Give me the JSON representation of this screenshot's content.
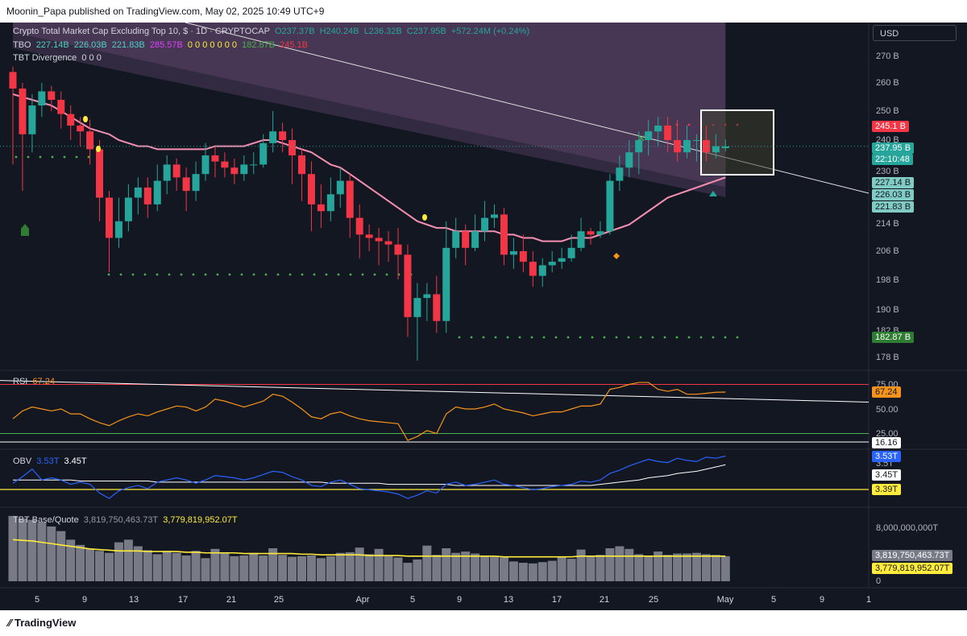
{
  "header": "Moonin_Papa published on TradingView.com, May 02, 2025 10:49 UTC+9",
  "footer": "TradingView",
  "currency": "USD",
  "legends": {
    "main": {
      "title": "Crypto Total Market Cap Excluding Top 10, $ · 1D · CRYPTOCAP",
      "o": "O237.37B",
      "h": "H240.24B",
      "l": "L236.32B",
      "c": "C237.95B",
      "chg": "+572.24M (+0.24%)"
    },
    "tbo": {
      "name": "TBO",
      "v1": "227.14B",
      "v2": "226.03B",
      "v3": "221.83B",
      "v4": "285.57B",
      "zeros": "0 0 0 0 0 0 0",
      "v5": "182.87B",
      "v6": "245.1B"
    },
    "tbtdiv": {
      "name": "TBT Divergence",
      "vals": "0 0 0"
    },
    "rsi": {
      "name": "RSI",
      "value": "67.24"
    },
    "obv": {
      "name": "OBV",
      "v1": "3.53T",
      "v2": "3.45T"
    },
    "tbt": {
      "name": "TBT Base/Quote",
      "v1": "3,819,750,463.73T",
      "v2": "3,779,819,952.07T"
    }
  },
  "price_axis": [
    "270 B",
    "260 B",
    "250 B",
    "240 B",
    "230 B",
    "214 B",
    "206 B",
    "198 B",
    "190 B",
    "182 B",
    "178 B"
  ],
  "price_tags": {
    "red": "245.1 B",
    "close": "237.95 B",
    "timer": "22:10:48",
    "t1": "227.14 B",
    "t2": "226.03 B",
    "t3": "221.83 B",
    "low": "182.87 B"
  },
  "rsi_axis": {
    "a75": "75.00",
    "a50": "50.00",
    "a25": "25.00",
    "tag_rsi": "67.24",
    "tag_low": "16.16"
  },
  "obv_axis": {
    "a35": "3.5T",
    "tag1": "3.53T",
    "tag2": "3.45T",
    "tag3": "3.39T"
  },
  "vol_axis": {
    "a8": "8,000,000,000T",
    "zero": "0",
    "tag1": "3,819,750,463.73T",
    "tag2": "3,779,819,952.07T"
  },
  "x_axis": [
    "5",
    "9",
    "13",
    "17",
    "21",
    "25",
    "Apr",
    "5",
    "9",
    "13",
    "17",
    "21",
    "25",
    "May",
    "5",
    "9",
    "1"
  ],
  "colors": {
    "up": "#26a69a",
    "down": "#f23645",
    "ma": "#f48fb1",
    "rsi": "#f7931a",
    "obv": "#2962ff",
    "signal": "#ffeb3b",
    "dots": "#4caf50",
    "cloud": "#7e5a8e"
  },
  "chart_data": {
    "type": "candlestick",
    "title": "Crypto Total Market Cap Excluding Top 10",
    "unit": "B USD",
    "ylim": [
      175,
      276
    ],
    "candles": [
      [
        264,
        258,
        266,
        232
      ],
      [
        258,
        242,
        260,
        224
      ],
      [
        242,
        252,
        256,
        236
      ],
      [
        252,
        257,
        260,
        248
      ],
      [
        257,
        254,
        259,
        250
      ],
      [
        254,
        249,
        257,
        244
      ],
      [
        249,
        245,
        252,
        240
      ],
      [
        245,
        243,
        248,
        238
      ],
      [
        243,
        237,
        247,
        232
      ],
      [
        237,
        222,
        240,
        215
      ],
      [
        222,
        210,
        224,
        200
      ],
      [
        210,
        215,
        222,
        207
      ],
      [
        215,
        222,
        226,
        212
      ],
      [
        222,
        225,
        228,
        217
      ],
      [
        225,
        220,
        228,
        216
      ],
      [
        220,
        227,
        232,
        218
      ],
      [
        227,
        232,
        235,
        223
      ],
      [
        232,
        228,
        234,
        224
      ],
      [
        228,
        224,
        231,
        218
      ],
      [
        224,
        229,
        233,
        221
      ],
      [
        229,
        235,
        239,
        227
      ],
      [
        235,
        233,
        238,
        228
      ],
      [
        233,
        231,
        236,
        228
      ],
      [
        231,
        229,
        234,
        226
      ],
      [
        229,
        232,
        235,
        227
      ],
      [
        232,
        232,
        236,
        229
      ],
      [
        232,
        239,
        242,
        231
      ],
      [
        239,
        243,
        250,
        236
      ],
      [
        243,
        240,
        246,
        236
      ],
      [
        240,
        235,
        244,
        226
      ],
      [
        235,
        229,
        237,
        221
      ],
      [
        229,
        220,
        233,
        212
      ],
      [
        220,
        218,
        226,
        213
      ],
      [
        218,
        223,
        228,
        215
      ],
      [
        223,
        227,
        231,
        219
      ],
      [
        227,
        216,
        229,
        210
      ],
      [
        216,
        211,
        220,
        204
      ],
      [
        211,
        210,
        214,
        206
      ],
      [
        210,
        209,
        213,
        202
      ],
      [
        209,
        208,
        212,
        203
      ],
      [
        208,
        205,
        213,
        198
      ],
      [
        205,
        188,
        208,
        183
      ],
      [
        188,
        193,
        197,
        177
      ],
      [
        193,
        194,
        197,
        187
      ],
      [
        194,
        187,
        199,
        184
      ],
      [
        187,
        207,
        215,
        184
      ],
      [
        207,
        212,
        216,
        204
      ],
      [
        212,
        207,
        214,
        202
      ],
      [
        207,
        212,
        217,
        206
      ],
      [
        212,
        216,
        221,
        209
      ],
      [
        216,
        217,
        220,
        213
      ],
      [
        217,
        205,
        219,
        202
      ],
      [
        205,
        206,
        210,
        201
      ],
      [
        206,
        203,
        211,
        200
      ],
      [
        203,
        199,
        206,
        196
      ],
      [
        199,
        202,
        204,
        196
      ],
      [
        202,
        203,
        206,
        200
      ],
      [
        203,
        204,
        207,
        201
      ],
      [
        204,
        207,
        211,
        203
      ],
      [
        207,
        212,
        216,
        206
      ],
      [
        212,
        211,
        213,
        208
      ],
      [
        211,
        212,
        215,
        210
      ],
      [
        212,
        227,
        229,
        211
      ],
      [
        227,
        231,
        235,
        224
      ],
      [
        231,
        236,
        240,
        228
      ],
      [
        236,
        240,
        243,
        229
      ],
      [
        240,
        243,
        247,
        235
      ],
      [
        243,
        245,
        248,
        238
      ],
      [
        245,
        240,
        248,
        236
      ],
      [
        240,
        236,
        247,
        233
      ],
      [
        236,
        240,
        245,
        234
      ],
      [
        240,
        240,
        242,
        233
      ],
      [
        240,
        236,
        245,
        233
      ],
      [
        236,
        238,
        242,
        234
      ],
      [
        237.37,
        237.95,
        240.24,
        236.32
      ]
    ],
    "ma": [
      256,
      255,
      254,
      253,
      252,
      250,
      248,
      246,
      244,
      243,
      242,
      240,
      239,
      238,
      238,
      237,
      237,
      237,
      237,
      237,
      237,
      238,
      238,
      238,
      238,
      239,
      240,
      240,
      239,
      238,
      237,
      236,
      234,
      232,
      231,
      229,
      227,
      225,
      223,
      221,
      219,
      217,
      215,
      214,
      213,
      213,
      212,
      212,
      212,
      212,
      212,
      211,
      211,
      210,
      210,
      209,
      209,
      209,
      210,
      210,
      210,
      211,
      212,
      213,
      214,
      216,
      218,
      220,
      222,
      223,
      224,
      225,
      226,
      227,
      228
    ],
    "rsi": [
      40,
      48,
      52,
      50,
      48,
      50,
      45,
      45,
      40,
      36,
      33,
      38,
      42,
      45,
      43,
      47,
      50,
      53,
      52,
      48,
      52,
      60,
      58,
      55,
      52,
      55,
      58,
      65,
      63,
      57,
      50,
      42,
      40,
      45,
      47,
      43,
      40,
      38,
      37,
      36,
      35,
      18,
      22,
      28,
      25,
      45,
      52,
      50,
      50,
      52,
      55,
      50,
      48,
      46,
      43,
      45,
      47,
      47,
      50,
      53,
      53,
      55,
      70,
      72,
      75,
      77,
      77,
      70,
      68,
      70,
      65,
      65,
      66,
      67,
      67.24
    ],
    "obv": [
      3.28,
      3.34,
      3.41,
      3.31,
      3.33,
      3.31,
      3.27,
      3.29,
      3.27,
      3.19,
      3.14,
      3.21,
      3.24,
      3.26,
      3.23,
      3.29,
      3.31,
      3.33,
      3.31,
      3.28,
      3.31,
      3.35,
      3.34,
      3.33,
      3.31,
      3.33,
      3.36,
      3.39,
      3.38,
      3.34,
      3.31,
      3.26,
      3.25,
      3.29,
      3.31,
      3.27,
      3.23,
      3.22,
      3.21,
      3.2,
      3.18,
      3.14,
      3.17,
      3.21,
      3.19,
      3.27,
      3.29,
      3.26,
      3.27,
      3.29,
      3.31,
      3.27,
      3.26,
      3.24,
      3.22,
      3.23,
      3.25,
      3.26,
      3.27,
      3.3,
      3.29,
      3.31,
      3.37,
      3.4,
      3.44,
      3.47,
      3.5,
      3.48,
      3.47,
      3.51,
      3.49,
      3.48,
      3.52,
      3.51,
      3.53
    ],
    "obv_signal": [
      3.31,
      3.31,
      3.31,
      3.31,
      3.31,
      3.31,
      3.31,
      3.3,
      3.3,
      3.3,
      3.3,
      3.3,
      3.3,
      3.3,
      3.3,
      3.29,
      3.29,
      3.29,
      3.29,
      3.29,
      3.29,
      3.29,
      3.29,
      3.29,
      3.29,
      3.29,
      3.29,
      3.29,
      3.29,
      3.29,
      3.29,
      3.29,
      3.29,
      3.28,
      3.28,
      3.28,
      3.28,
      3.28,
      3.28,
      3.27,
      3.27,
      3.27,
      3.27,
      3.27,
      3.27,
      3.27,
      3.26,
      3.26,
      3.26,
      3.26,
      3.26,
      3.26,
      3.26,
      3.26,
      3.26,
      3.26,
      3.26,
      3.26,
      3.26,
      3.26,
      3.26,
      3.27,
      3.28,
      3.29,
      3.3,
      3.31,
      3.33,
      3.34,
      3.35,
      3.37,
      3.38,
      3.39,
      3.41,
      3.43,
      3.45
    ],
    "volume": [
      9.9,
      9.5,
      9.3,
      8.9,
      8.3,
      7.6,
      6.3,
      5.5,
      4.9,
      4.6,
      4.3,
      5.9,
      6.3,
      5.3,
      4.7,
      4.1,
      4.6,
      4.3,
      3.9,
      4.6,
      3.5,
      4.9,
      4.4,
      3.8,
      3.9,
      4.3,
      3.9,
      5.0,
      4.0,
      3.7,
      3.8,
      3.9,
      3.5,
      3.8,
      4.3,
      4.4,
      5.1,
      4.1,
      4.9,
      3.8,
      3.6,
      2.8,
      3.3,
      5.4,
      4.0,
      5.0,
      4.3,
      4.5,
      4.2,
      3.8,
      3.7,
      3.6,
      3.0,
      2.8,
      2.7,
      2.9,
      3.1,
      3.6,
      3.4,
      4.8,
      3.9,
      4.0,
      5.0,
      5.3,
      4.9,
      4.1,
      3.8,
      4.5,
      4.0,
      4.2,
      4.2,
      4.3,
      4.1,
      4.0,
      3.8
    ],
    "volume_ma": [
      6.3,
      6.2,
      6.1,
      5.9,
      5.7,
      5.5,
      5.3,
      5.1,
      4.9,
      4.8,
      4.7,
      4.6,
      4.6,
      4.6,
      4.5,
      4.5,
      4.5,
      4.5,
      4.4,
      4.4,
      4.3,
      4.3,
      4.3,
      4.3,
      4.2,
      4.2,
      4.2,
      4.2,
      4.2,
      4.2,
      4.1,
      4.1,
      4.0,
      4.0,
      4.0,
      4.0,
      4.0,
      3.9,
      3.9,
      3.9,
      3.9,
      3.8,
      3.8,
      3.8,
      3.8,
      3.8,
      3.8,
      3.8,
      3.8,
      3.8,
      3.8,
      3.7,
      3.7,
      3.7,
      3.7,
      3.7,
      3.7,
      3.7,
      3.7,
      3.8,
      3.8,
      3.8,
      3.8,
      3.8,
      3.8,
      3.8,
      3.8,
      3.8,
      3.8,
      3.8,
      3.8,
      3.8,
      3.8,
      3.8,
      3.8
    ]
  }
}
